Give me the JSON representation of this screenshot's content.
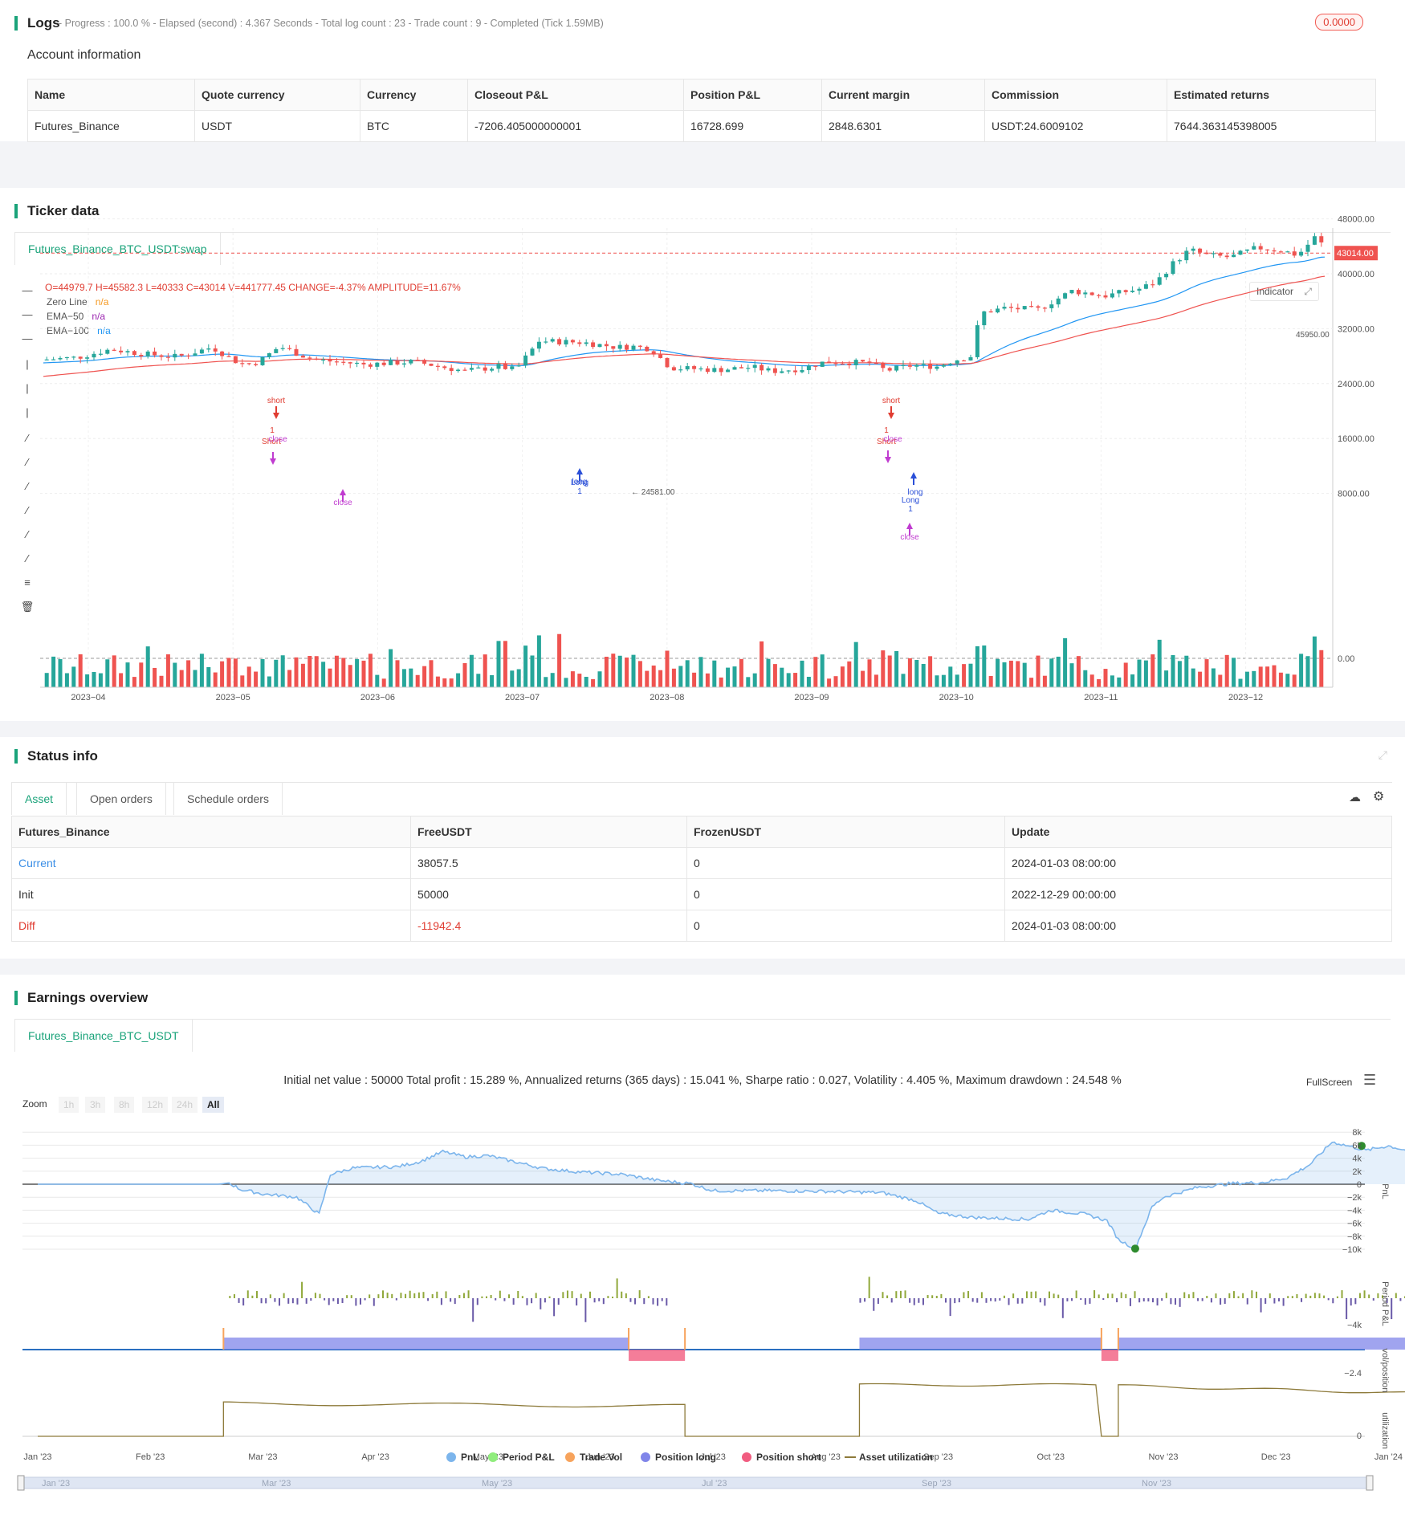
{
  "logs": {
    "title": "Logs",
    "subtitle": "- Progress : 100.0 % - Elapsed (second) : 4.367  Seconds - Total log count : 23 - Trade count : 9 - Completed (Tick 1.59MB)",
    "badge": "0.0000"
  },
  "account": {
    "title": "Account information",
    "headers": [
      "Name",
      "Quote currency",
      "Currency",
      "Closeout P&L",
      "Position P&L",
      "Current margin",
      "Commission",
      "Estimated returns"
    ],
    "row": [
      "Futures_Binance",
      "USDT",
      "BTC",
      "-7206.405000000001",
      "16728.699",
      "2848.6301",
      "USDT:24.6009102",
      "7644.363145398005"
    ]
  },
  "ticker": {
    "title": "Ticker data",
    "tab": "Futures_Binance_BTC_USDT:swap",
    "ohlc": "O=44979.7 H=45582.3 L=40333 C=43014 V=441777.45 CHANGE=-4.37% AMPLITUDE=11.67%",
    "legend": [
      {
        "name": "Zero Line",
        "value": "n/a",
        "color": "#f59a23"
      },
      {
        "name": "EMA−50",
        "value": "n/a",
        "color": "#9c27b0"
      },
      {
        "name": "EMA−100",
        "value": "n/a",
        "color": "#2196f3"
      }
    ],
    "indicator_btn": "Indicator",
    "price_labels": [
      "48000.00",
      "40000.00",
      "32000.00",
      "24000.00",
      "16000.00",
      "8000.00",
      "0.00"
    ],
    "high_label": "45950.00",
    "current_price": "43014.00",
    "low_label": "24581.00",
    "months": [
      "2023−04",
      "2023−05",
      "2023−06",
      "2023−07",
      "2023−08",
      "2023−09",
      "2023−10",
      "2023−11",
      "2023−12"
    ],
    "annotations": {
      "short": "short",
      "one": "1",
      "close": "close",
      "short_cap": "Short",
      "long": "long",
      "long_cap": "Long"
    }
  },
  "status": {
    "title": "Status info",
    "tabs": [
      "Asset",
      "Open orders",
      "Schedule orders"
    ],
    "headers": [
      "Futures_Binance",
      "FreeUSDT",
      "FrozenUSDT",
      "Update"
    ],
    "rows": [
      [
        "Current",
        "38057.5",
        "0",
        "2024-01-03 08:00:00"
      ],
      [
        "Init",
        "50000",
        "0",
        "2022-12-29 00:00:00"
      ],
      [
        "Diff",
        "-11942.4",
        "0",
        "2024-01-03 08:00:00"
      ]
    ],
    "colors": {
      "current": "#3a8ee6",
      "diff": "#e03c31"
    }
  },
  "earnings": {
    "title": "Earnings overview",
    "tab": "Futures_Binance_BTC_USDT",
    "summary": "Initial net value : 50000  Total profit : 15.289 %, Annualized returns (365 days) : 15.041 %, Sharpe ratio : 0.027, Volatility : 4.405 %, Maximum drawdown : 24.548 %",
    "fullscreen": "FullScreen",
    "zoom_label": "Zoom",
    "zoom_buttons": [
      "1h",
      "3h",
      "8h",
      "12h",
      "24h",
      "All"
    ],
    "pnl_ticks": [
      "8k",
      "6k",
      "4k",
      "2k",
      "0",
      "−2k",
      "−4k",
      "−6k",
      "−8k",
      "−10k"
    ],
    "axis_titles": [
      "PnL",
      "Period P&L",
      "vol/position",
      "utilization"
    ],
    "period_tick": "−4k",
    "pos_tick": "−2.4",
    "util_tick": "0",
    "months": [
      "Jan '23",
      "Feb '23",
      "Mar '23",
      "Apr '23",
      "May '23",
      "Jun '23",
      "Jul '23",
      "Aug '23",
      "Sep '23",
      "Oct '23",
      "Nov '23",
      "Dec '23",
      "Jan '24"
    ],
    "nav_months": [
      "Jan '23",
      "Mar '23",
      "May '23",
      "Jul '23",
      "Sep '23",
      "Nov '23"
    ],
    "legend": [
      {
        "name": "PnL",
        "color": "#7cb5ec"
      },
      {
        "name": "Period P&L",
        "color": "#90ed7d"
      },
      {
        "name": "Trade Vol",
        "color": "#f7a35c"
      },
      {
        "name": "Position long",
        "color": "#8085e9"
      },
      {
        "name": "Position short",
        "color": "#f15c80"
      },
      {
        "name": "Asset utilization",
        "color": "#8d7a3a"
      }
    ]
  }
}
